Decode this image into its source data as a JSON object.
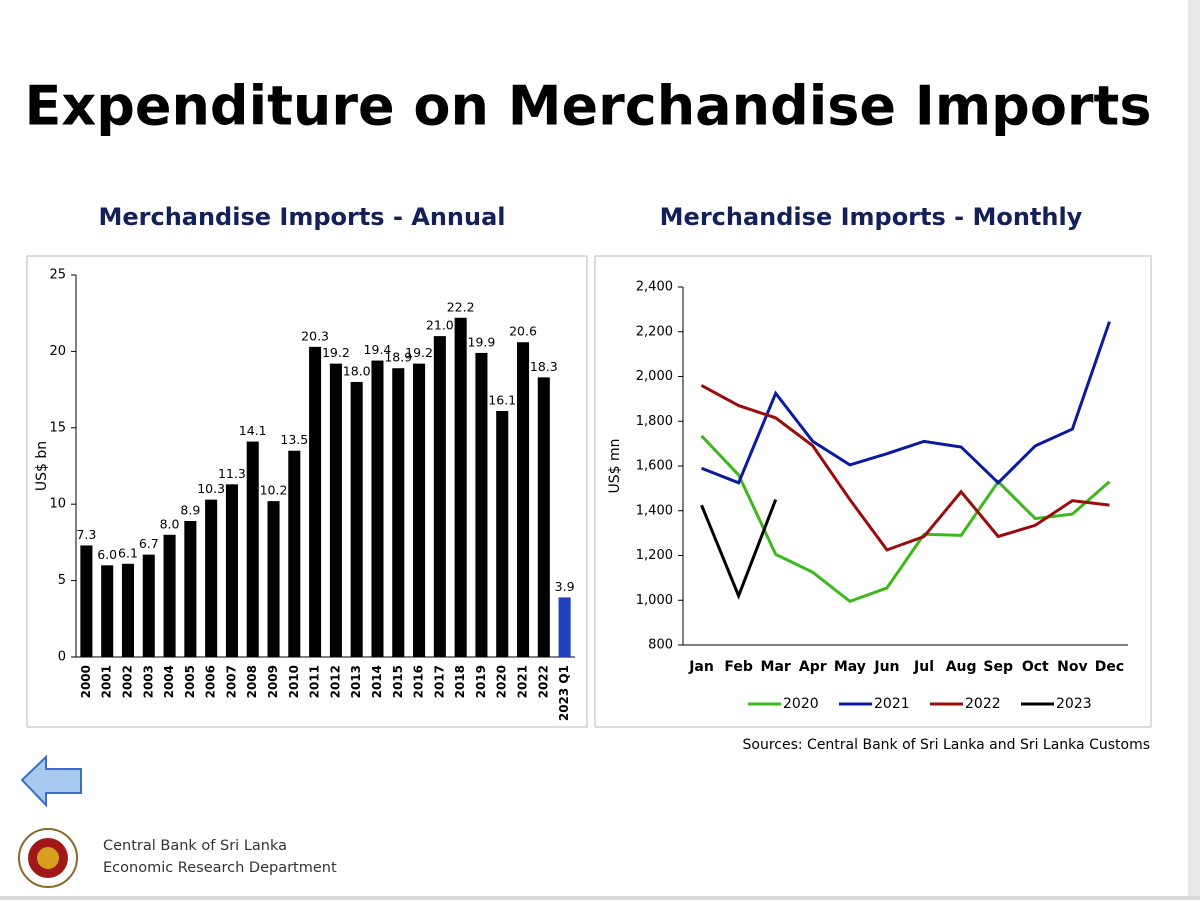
{
  "title": "Expenditure on Merchandise Imports",
  "chart_data": [
    {
      "type": "bar",
      "title": "Merchandise Imports - Annual",
      "y_label": "US$ bn",
      "categories": [
        "2000",
        "2001",
        "2002",
        "2003",
        "2004",
        "2005",
        "2006",
        "2007",
        "2008",
        "2009",
        "2010",
        "2011",
        "2012",
        "2013",
        "2014",
        "2015",
        "2016",
        "2017",
        "2018",
        "2019",
        "2020",
        "2021",
        "2022",
        "2023 Q1"
      ],
      "values": [
        7.3,
        6.0,
        6.1,
        6.7,
        8.0,
        8.9,
        10.3,
        11.3,
        14.1,
        10.2,
        13.5,
        20.3,
        19.2,
        18.0,
        19.4,
        18.9,
        19.2,
        21.0,
        22.2,
        19.9,
        16.1,
        20.6,
        18.3,
        3.9
      ],
      "value_labels": [
        "7.3",
        "6.0",
        "6.1",
        "6.7",
        "8.0",
        "8.9",
        "10.3",
        "11.3",
        "14.1",
        "10.2",
        "13.5",
        "20.3",
        "19.2",
        "18.0",
        "19.4",
        "18.9",
        "19.2",
        "21.0",
        "22.2",
        "19.9",
        "16.1",
        "20.6",
        "18.3",
        "3.9"
      ],
      "colors": [
        "#000000",
        "#000000",
        "#000000",
        "#000000",
        "#000000",
        "#000000",
        "#000000",
        "#000000",
        "#000000",
        "#000000",
        "#000000",
        "#000000",
        "#000000",
        "#000000",
        "#000000",
        "#000000",
        "#000000",
        "#000000",
        "#000000",
        "#000000",
        "#000000",
        "#000000",
        "#000000",
        "#1f3fbf"
      ],
      "ylim": [
        0,
        25
      ],
      "yticks": [
        0,
        5,
        10,
        15,
        20,
        25
      ]
    },
    {
      "type": "line",
      "title": "Merchandise Imports - Monthly",
      "y_label": "US$ mn",
      "categories": [
        "Jan",
        "Feb",
        "Mar",
        "Apr",
        "May",
        "Jun",
        "Jul",
        "Aug",
        "Sep",
        "Oct",
        "Nov",
        "Dec"
      ],
      "series": [
        {
          "name": "2020",
          "color": "#3cb81c",
          "values": [
            1735,
            1560,
            1205,
            1125,
            995,
            1055,
            1295,
            1290,
            1530,
            1365,
            1385,
            1530
          ]
        },
        {
          "name": "2021",
          "color": "#0a1aa0",
          "values": [
            1590,
            1525,
            1925,
            1710,
            1605,
            1655,
            1710,
            1685,
            1525,
            1690,
            1765,
            2245
          ]
        },
        {
          "name": "2022",
          "color": "#9b0c0c",
          "values": [
            1960,
            1870,
            1815,
            1690,
            1450,
            1225,
            1285,
            1485,
            1285,
            1335,
            1445,
            1425
          ]
        },
        {
          "name": "2023",
          "color": "#000000",
          "values": [
            1425,
            1020,
            1450,
            null,
            null,
            null,
            null,
            null,
            null,
            null,
            null,
            null
          ]
        }
      ],
      "ylim": [
        800,
        2400
      ],
      "yticks": [
        800,
        {
          "value": 1000,
          "label": "1,000"
        },
        {
          "value": 1200,
          "label": "1,200"
        },
        {
          "value": 1400,
          "label": "1,400"
        },
        {
          "value": 1600,
          "label": "1,600"
        },
        {
          "value": 1800,
          "label": "1,800"
        },
        {
          "value": 2000,
          "label": "2,000"
        },
        {
          "value": 2200,
          "label": "2,200"
        },
        {
          "value": 2400,
          "label": "2,400"
        }
      ]
    }
  ],
  "source": "Sources: Central Bank of Sri Lanka and Sri Lanka Customs",
  "footer": [
    "Central Bank of Sri Lanka",
    "Economic Research Department"
  ]
}
